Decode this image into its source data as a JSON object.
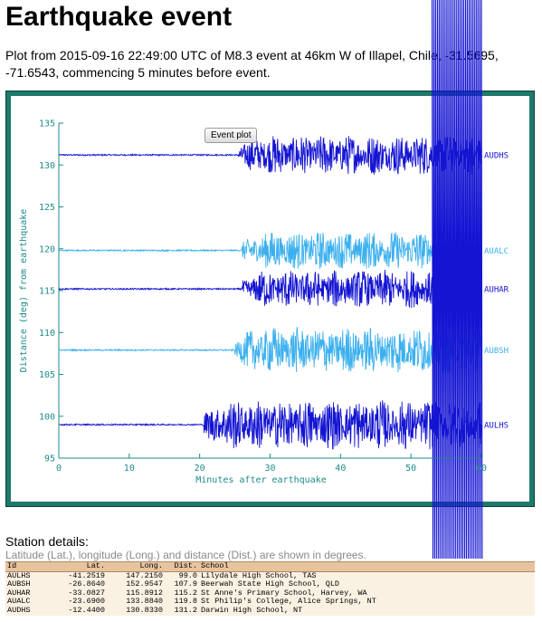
{
  "page": {
    "title": "Earthquake event",
    "intro": "Plot from 2015-09-16 22:49:00 UTC of M8.3 event at 46km W of Illapel, Chile, -31.5695, -71.6543, commencing 5 minutes before event.",
    "event_button": "Event plot"
  },
  "chart_data": {
    "type": "line",
    "title": "",
    "xlabel": "Minutes after earthquake",
    "ylabel": "Distance (deg) from earthquake",
    "xlim": [
      0,
      60
    ],
    "ylim": [
      95,
      135
    ],
    "x_ticks": [
      "0",
      "10",
      "20",
      "30",
      "40",
      "50",
      "60"
    ],
    "y_ticks": [
      "95",
      "100",
      "105",
      "110",
      "115",
      "120",
      "125",
      "130",
      "135"
    ],
    "grid": false,
    "series": [
      {
        "name": "AUDHS",
        "distance": 131.2,
        "color": "#1414d2",
        "onset_min": 25.5,
        "amplitude": 2.4
      },
      {
        "name": "AUALC",
        "distance": 119.8,
        "color": "#3cb0ee",
        "onset_min": 26.0,
        "amplitude": 2.3
      },
      {
        "name": "AUHAR",
        "distance": 115.2,
        "color": "#1414d2",
        "onset_min": 26.0,
        "amplitude": 2.3
      },
      {
        "name": "AUBSH",
        "distance": 107.9,
        "color": "#3cb0ee",
        "onset_min": 25.0,
        "amplitude": 2.8
      },
      {
        "name": "AULHS",
        "distance": 99.0,
        "color": "#1414d2",
        "onset_min": 20.5,
        "amplitude": 3.0
      }
    ],
    "surface_wave_window_min": [
      53,
      60
    ]
  },
  "stations": {
    "heading": "Station details:",
    "note": "Latitude (Lat.), longitude (Long.) and distance (Dist.) are shown in degrees.",
    "columns": [
      "Id",
      "Lat.",
      "Long.",
      "Dist.",
      "School"
    ],
    "rows": [
      [
        "AULHS",
        "-41.2519",
        "147.2150",
        "99.0",
        "Lilydale High School, TAS"
      ],
      [
        "AUBSH",
        "-26.8640",
        "152.9547",
        "107.9",
        "Beerwah State High School, QLD"
      ],
      [
        "AUHAR",
        "-33.0827",
        "115.8912",
        "115.2",
        "St Anne's Primary School, Harvey, WA"
      ],
      [
        "AUALC",
        "-23.6900",
        "133.8840",
        "119.8",
        "St Philip's College, Alice Springs, NT"
      ],
      [
        "AUDHS",
        "-12.4400",
        "130.8330",
        "131.2",
        "Darwin High School, NT"
      ]
    ]
  }
}
